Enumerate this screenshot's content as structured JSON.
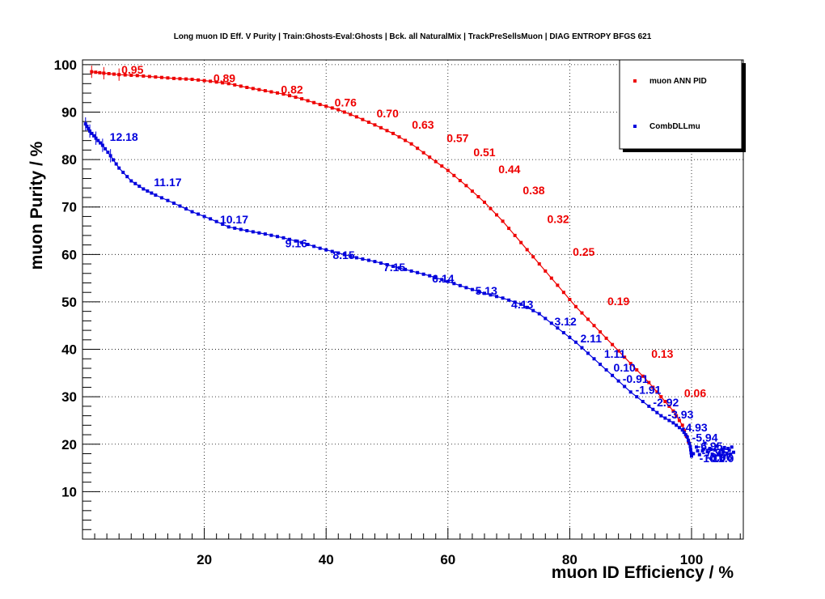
{
  "chart_data": {
    "type": "line",
    "title": "Long muon ID Eff. V Purity | Train:Ghosts-Eval:Ghosts | Bck. all NaturalMix | TrackPreSellsMuon | DIAG ENTROPY BFGS 621",
    "xlabel": "muon ID Efficiency / %",
    "ylabel": "muon Purity / %",
    "xlim": [
      0,
      108.5
    ],
    "ylim": [
      0,
      101
    ],
    "xticks": [
      "20",
      "40",
      "60",
      "80",
      "100"
    ],
    "yticks": [
      "10",
      "20",
      "30",
      "40",
      "50",
      "60",
      "70",
      "80",
      "90",
      "100"
    ],
    "grid": true,
    "legend_position": "top-right",
    "colors": {
      "series1": "#ee0000",
      "series2": "#0000dd"
    },
    "series": [
      {
        "name": "muon ANN PID",
        "color": "#ee0000",
        "x": [
          1.5,
          3.5,
          6,
          9,
          12,
          15,
          18,
          21,
          24,
          27,
          30,
          33,
          36,
          39,
          42,
          45,
          48,
          51,
          54,
          57,
          60,
          63,
          66,
          69,
          72,
          75,
          78,
          81,
          84,
          87,
          90,
          93,
          95,
          97,
          98.5,
          99.5
        ],
        "y": [
          98.5,
          98.2,
          97.9,
          97.7,
          97.4,
          97.1,
          96.9,
          96.5,
          96,
          95.2,
          94.5,
          93.8,
          92.8,
          91.6,
          90.5,
          89,
          87.3,
          85.5,
          83.3,
          80.5,
          77.7,
          74.5,
          71,
          67,
          62.5,
          58,
          53.5,
          49,
          45,
          41,
          37,
          33,
          30,
          27,
          24,
          20.5
        ]
      },
      {
        "name": "CombDLLmu",
        "color": "#0000dd",
        "x": [
          0.5,
          1.2,
          2.2,
          3.3,
          4.6,
          6,
          8,
          10,
          12,
          15,
          18,
          21,
          24,
          27,
          30,
          33,
          36,
          39,
          42,
          45,
          48,
          51,
          54,
          57,
          60,
          63,
          66,
          69,
          72,
          75,
          78,
          81,
          84,
          87,
          90,
          93,
          95,
          97,
          98.5,
          99.3,
          99.8,
          100
        ],
        "y": [
          87.5,
          86,
          84.5,
          83,
          80.8,
          78.2,
          75.5,
          73.8,
          72.5,
          70.8,
          69,
          67.5,
          65.8,
          65,
          64.3,
          63.5,
          62.5,
          61.3,
          60.3,
          59.3,
          58.5,
          57.5,
          56.5,
          55.5,
          54.3,
          53,
          51.8,
          50.8,
          49.5,
          47.5,
          44.5,
          41.5,
          38,
          34.5,
          31,
          28,
          26,
          24.5,
          23,
          21.5,
          19.5,
          17.5
        ]
      }
    ],
    "annotations_red": [
      {
        "text": "0.95",
        "x": 8.2,
        "y": 98.1
      },
      {
        "text": "0.89",
        "x": 23.3,
        "y": 96.3
      },
      {
        "text": "0.82",
        "x": 34.4,
        "y": 93.9
      },
      {
        "text": "0.76",
        "x": 43.2,
        "y": 91.2
      },
      {
        "text": "0.70",
        "x": 50.1,
        "y": 88.9
      },
      {
        "text": "0.63",
        "x": 55.9,
        "y": 86.5
      },
      {
        "text": "0.57",
        "x": 61.6,
        "y": 83.7
      },
      {
        "text": "0.51",
        "x": 66.0,
        "y": 80.7
      },
      {
        "text": "0.44",
        "x": 70.1,
        "y": 77.1
      },
      {
        "text": "0.38",
        "x": 74.1,
        "y": 72.7
      },
      {
        "text": "0.32",
        "x": 78.1,
        "y": 66.6
      },
      {
        "text": "0.25",
        "x": 82.3,
        "y": 59.7
      },
      {
        "text": "0.19",
        "x": 88.0,
        "y": 49.3
      },
      {
        "text": "0.13",
        "x": 95.2,
        "y": 38.2
      },
      {
        "text": "0.06",
        "x": 100.6,
        "y": 29.9
      }
    ],
    "annotations_blue": [
      {
        "text": "12.18",
        "x": 6.8,
        "y": 83.9
      },
      {
        "text": "11.17",
        "x": 14.0,
        "y": 74.4
      },
      {
        "text": "10.17",
        "x": 24.9,
        "y": 66.5
      },
      {
        "text": "9.16",
        "x": 35.1,
        "y": 61.5
      },
      {
        "text": "8.15",
        "x": 42.9,
        "y": 59.0
      },
      {
        "text": "7.15",
        "x": 51.2,
        "y": 56.5
      },
      {
        "text": "6.14",
        "x": 59.2,
        "y": 54.1
      },
      {
        "text": "5.13",
        "x": 66.3,
        "y": 51.5
      },
      {
        "text": "4.13",
        "x": 72.2,
        "y": 48.6
      },
      {
        "text": "3.12",
        "x": 79.3,
        "y": 45.0
      },
      {
        "text": "2.11",
        "x": 83.5,
        "y": 41.5
      },
      {
        "text": "1.11",
        "x": 87.4,
        "y": 38.2
      },
      {
        "text": "0.10",
        "x": 89.0,
        "y": 35.3
      },
      {
        "text": "-0.91",
        "x": 90.8,
        "y": 32.9
      },
      {
        "text": "-1.91",
        "x": 92.9,
        "y": 30.6
      },
      {
        "text": "-2.92",
        "x": 95.8,
        "y": 28.0
      },
      {
        "text": "-3.93",
        "x": 98.2,
        "y": 25.4
      },
      {
        "text": "-4.93",
        "x": 100.5,
        "y": 22.7
      },
      {
        "text": "-5.94",
        "x": 102.2,
        "y": 20.6
      },
      {
        "text": "-6.95",
        "x": 103.0,
        "y": 18.8
      },
      {
        "text": "-7.95",
        "x": 103.8,
        "y": 17.4
      },
      {
        "text": "-8.96",
        "x": 104.6,
        "y": 16.5
      },
      {
        "text": "-10.0",
        "x": 103.4,
        "y": 16.2
      },
      {
        "text": "-11.0",
        "x": 104.9,
        "y": 16.2
      }
    ],
    "blue_tail": [
      [
        100.3,
        18
      ],
      [
        100.8,
        19.4
      ],
      [
        101.3,
        17.8
      ],
      [
        101.8,
        18.6
      ],
      [
        102.2,
        20.2
      ],
      [
        102.6,
        18.4
      ],
      [
        103.0,
        19.1
      ],
      [
        103.4,
        17.9
      ],
      [
        103.8,
        18.8
      ],
      [
        104.2,
        19.6
      ],
      [
        104.6,
        18.2
      ],
      [
        105.0,
        18.9
      ],
      [
        105.4,
        19.3
      ],
      [
        105.8,
        18.1
      ],
      [
        106.2,
        18.7
      ],
      [
        106.6,
        19.4
      ],
      [
        106.9,
        18.3
      ],
      [
        101.0,
        18.6
      ],
      [
        102.0,
        19.0
      ],
      [
        103.2,
        18.9
      ],
      [
        104.4,
        17.9
      ],
      [
        105.2,
        18.4
      ],
      [
        106.0,
        19.1
      ],
      [
        106.4,
        17.9
      ]
    ],
    "legend": [
      {
        "label": "muon ANN PID",
        "color": "#ee0000"
      },
      {
        "label": "CombDLLmu",
        "color": "#0000dd"
      }
    ]
  }
}
